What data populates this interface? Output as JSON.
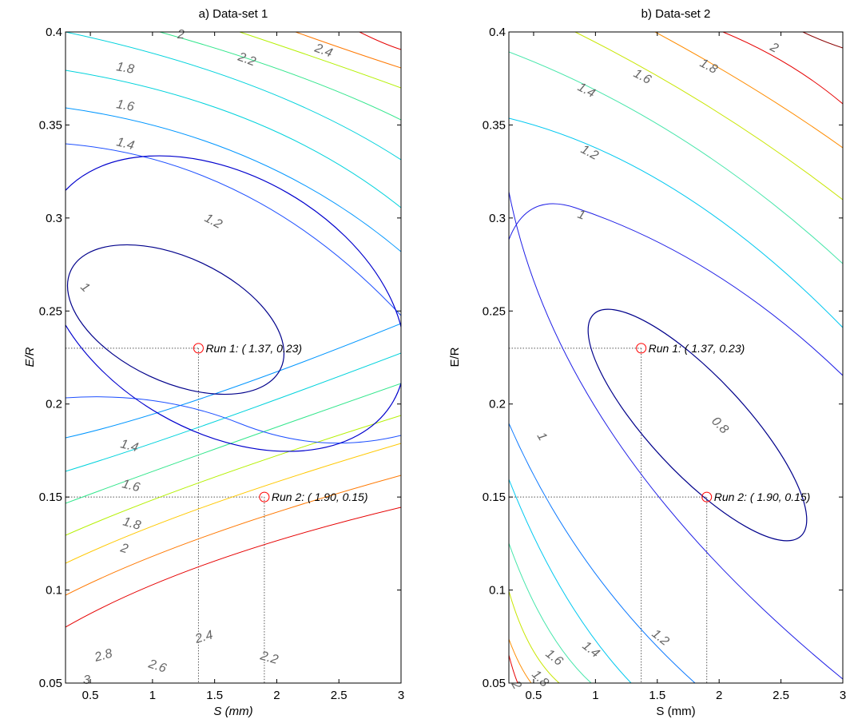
{
  "chart_data": [
    {
      "type": "contour",
      "title": "a) Data-set 1",
      "xlabel": "S (mm)",
      "ylabel": "E/R",
      "xlim": [
        0.3,
        3.0
      ],
      "ylim": [
        0.05,
        0.4
      ],
      "xticks": [
        "0.5",
        "1",
        "1.5",
        "2",
        "2.5",
        "3"
      ],
      "yticks": [
        "0.05",
        "0.1",
        "0.15",
        "0.2",
        "0.25",
        "0.3",
        "0.35",
        "0.4"
      ],
      "contour_levels": [
        {
          "level": "1",
          "label": "1",
          "color": "#00008b"
        },
        {
          "level": "1.2",
          "label": "1.2",
          "color": "#0000cd"
        },
        {
          "level": "1.4",
          "label": "1.4",
          "color": "#1e50ff"
        },
        {
          "level": "1.6",
          "label": "1.6",
          "color": "#0096ff"
        },
        {
          "level": "1.8",
          "label": "1.8",
          "color": "#00d2dc"
        },
        {
          "level": "2",
          "label": "2",
          "color": "#32e68c"
        },
        {
          "level": "2.2",
          "label": "2.2",
          "color": "#b4f000"
        },
        {
          "level": "2.4",
          "label": "2.4",
          "color": "#ffc800"
        },
        {
          "level": "2.6",
          "label": "2.6",
          "color": "#ff7800"
        },
        {
          "level": "2.8",
          "label": "2.8",
          "color": "#e60000"
        },
        {
          "level": "3",
          "label": "3",
          "color": "#8b0000"
        }
      ],
      "points": [
        {
          "label": "Run 1: ( 1.37,  0.23)",
          "x": 1.37,
          "y": 0.23
        },
        {
          "label": "Run 2: ( 1.90,  0.15)",
          "x": 1.9,
          "y": 0.15
        }
      ],
      "point_color": "#ff0000"
    },
    {
      "type": "contour",
      "title": "b) Data-set 2",
      "xlabel": "S (mm)",
      "ylabel": "E/R",
      "xlim": [
        0.3,
        3.0
      ],
      "ylim": [
        0.05,
        0.4
      ],
      "xticks": [
        "0.5",
        "1",
        "1.5",
        "2",
        "2.5",
        "3"
      ],
      "yticks": [
        "0.05",
        "0.1",
        "0.15",
        "0.2",
        "0.25",
        "0.3",
        "0.35",
        "0.4"
      ],
      "contour_levels": [
        {
          "level": "0.8",
          "label": "0.8",
          "color": "#00008b"
        },
        {
          "level": "1",
          "label": "1",
          "color": "#1e1ee6"
        },
        {
          "level": "1.2",
          "label": "1.2",
          "color": "#0a78ff"
        },
        {
          "level": "1.4",
          "label": "1.4",
          "color": "#00c8f0"
        },
        {
          "level": "1.6",
          "label": "1.6",
          "color": "#46e6aa"
        },
        {
          "level": "1.8",
          "label": "1.8",
          "color": "#c8e600"
        },
        {
          "level": "2",
          "label": "2",
          "color": "#ff8c00"
        }
      ],
      "points": [
        {
          "label": "Run 1: ( 1.37,  0.23)",
          "x": 1.37,
          "y": 0.23
        },
        {
          "label": "Run 2: ( 1.90,  0.15)",
          "x": 1.9,
          "y": 0.15
        }
      ],
      "point_color": "#ff0000"
    }
  ]
}
